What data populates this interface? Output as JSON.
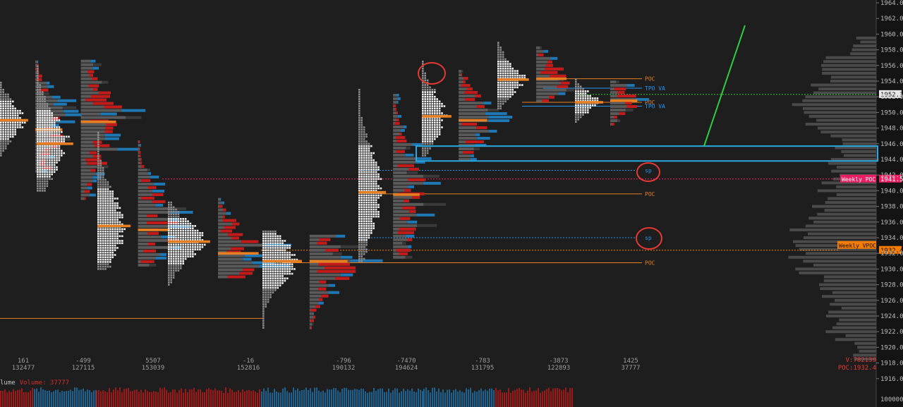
{
  "colors": {
    "background": "#1e1e1e",
    "tpo_white": "#f2f2f2",
    "tpo_grey": "#8c8c8c",
    "vol_grey": "#5a5a5a",
    "vol_blue": "#1f77b4",
    "vol_red": "#c41a1a",
    "vol_dark": "#3a3a3a",
    "poc_orange": "#e67e22",
    "va_blue": "#2196f3",
    "weekly_pink": "#e91e63",
    "weekly_vpoc": "#f57c00",
    "trend_green": "#2ecc40",
    "circle_red": "#e53935",
    "axis_bg": "#141414"
  },
  "chart_data": {
    "type": "market-profile",
    "ylim": [
      1915,
      1965
    ],
    "y_ticks": [
      "1964.0",
      "1962.0",
      "1960.0",
      "1958.0",
      "1956.0",
      "1954.0",
      "1952.0",
      "1950.0",
      "1948.0",
      "1946.0",
      "1944.0",
      "1942.0",
      "1940.0",
      "1938.0",
      "1936.0",
      "1934.0",
      "1932.0",
      "1930.0",
      "1928.0",
      "1926.0",
      "1924.0",
      "1922.0",
      "1920.0",
      "1918.0",
      "1916.0"
    ],
    "volume_axis_label": "100000",
    "current_price": {
      "label": "1952.3",
      "value": 1952.3
    },
    "weekly_poc": {
      "label": "Weekly POC",
      "value_label": "1941.5",
      "value": 1941.5
    },
    "weekly_vpoc": {
      "label": "Weekly VPOC",
      "value_label": "1932.4",
      "value": 1932.4
    },
    "levels": [
      {
        "label": "POC",
        "value": 1954.3,
        "kind": "poc"
      },
      {
        "label": "TPO VA",
        "value": 1953.1,
        "kind": "va"
      },
      {
        "label": "POC",
        "value": 1951.3,
        "kind": "poc"
      },
      {
        "label": "TPO VA",
        "value": 1950.8,
        "kind": "va"
      },
      {
        "label": "sp",
        "value": 1942.6,
        "kind": "sp"
      },
      {
        "label": "POC",
        "value": 1939.6,
        "kind": "poc"
      },
      {
        "label": "sp",
        "value": 1934.0,
        "kind": "sp"
      },
      {
        "label": "POC",
        "value": 1930.8,
        "kind": "poc"
      }
    ],
    "sessions": [
      {
        "delta": "161",
        "volume": "132477",
        "tpo": [
          1944.5,
          1954.0,
          1949.0
        ],
        "vp": [
          1942.5,
          1956.5,
          1947.8
        ]
      },
      {
        "delta": "-499",
        "volume": "127115",
        "tpo": [
          1940.0,
          1956.0,
          1946.0
        ],
        "vp": [
          1939.0,
          1957.0,
          1948.8
        ]
      },
      {
        "delta": "5507",
        "volume": "153039",
        "tpo": [
          1930.0,
          1947.5,
          1935.5
        ],
        "vp": [
          1930.5,
          1946.5,
          1935.0
        ]
      },
      {
        "delta": "-16",
        "volume": "152816",
        "tpo": [
          1928.0,
          1938.5,
          1933.5
        ],
        "vp": [
          1929.0,
          1939.0,
          1932.0
        ]
      },
      {
        "delta": "-796",
        "volume": "190132",
        "tpo": [
          1922.5,
          1935.0,
          1931.0
        ],
        "vp": [
          1922.5,
          1934.5,
          1931.0
        ]
      },
      {
        "delta": "-7470",
        "volume": "194624",
        "tpo": [
          1931.0,
          1953.0,
          1939.8
        ],
        "vp": [
          1931.5,
          1952.5,
          1939.5
        ]
      },
      {
        "delta": "-783",
        "volume": "131795",
        "tpo": [
          1944.5,
          1956.5,
          1949.5
        ],
        "vp": [
          1944.0,
          1955.5,
          1949.0
        ]
      },
      {
        "delta": "-3873",
        "volume": "122893",
        "tpo": [
          1950.5,
          1959.0,
          1954.2
        ],
        "vp": [
          1951.5,
          1958.5,
          1954.3
        ]
      },
      {
        "delta": "1425",
        "volume": "37777",
        "tpo": [
          1948.8,
          1954.2,
          1951.3
        ],
        "vp": [
          1948.5,
          1954.0,
          1951.5
        ]
      }
    ],
    "volume_legend": {
      "name": "lume",
      "value": "Volume: 37777"
    },
    "vp_readout": {
      "v": "V:782139",
      "poc": "POC:1932.4"
    }
  }
}
